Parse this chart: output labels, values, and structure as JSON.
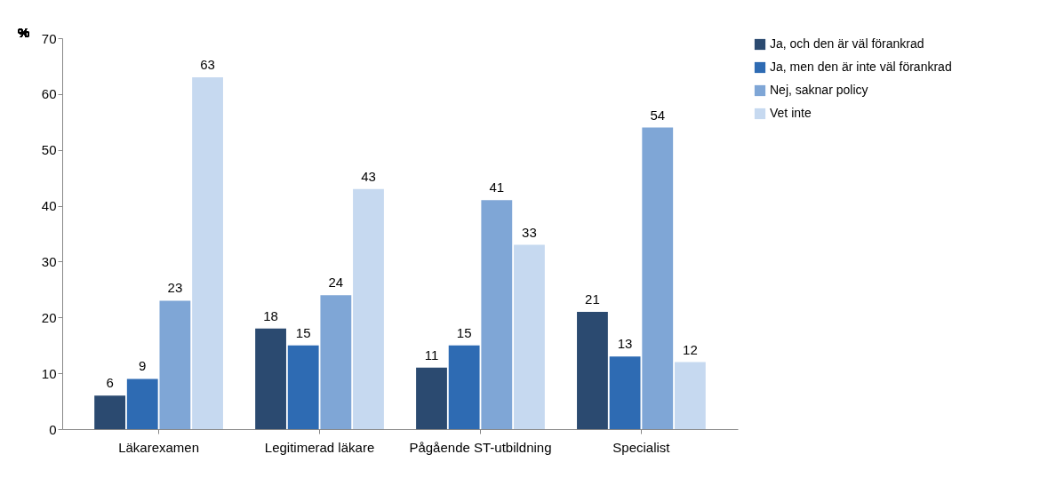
{
  "chart_data": {
    "type": "bar",
    "ylabel": "%",
    "categories": [
      "Läkarexamen",
      "Legitimerad läkare",
      "Pågående ST-utbildning",
      "Specialist"
    ],
    "series": [
      {
        "name": "Ja, och den är väl förankrad",
        "color": "#2b4a70",
        "values": [
          6,
          18,
          11,
          21
        ]
      },
      {
        "name": "Ja, men den är inte väl förankrad",
        "color": "#2e6bb3",
        "values": [
          9,
          15,
          15,
          13
        ]
      },
      {
        "name": "Nej, saknar  policy",
        "color": "#7fa6d6",
        "values": [
          23,
          24,
          41,
          54
        ]
      },
      {
        "name": "Vet inte",
        "color": "#c6d9f0",
        "values": [
          63,
          43,
          33,
          12
        ]
      }
    ],
    "ylim": [
      0,
      70
    ],
    "yticks": [
      0,
      10,
      20,
      30,
      40,
      50,
      60,
      70
    ],
    "grid": false,
    "legend": "right",
    "data_labels": true
  }
}
